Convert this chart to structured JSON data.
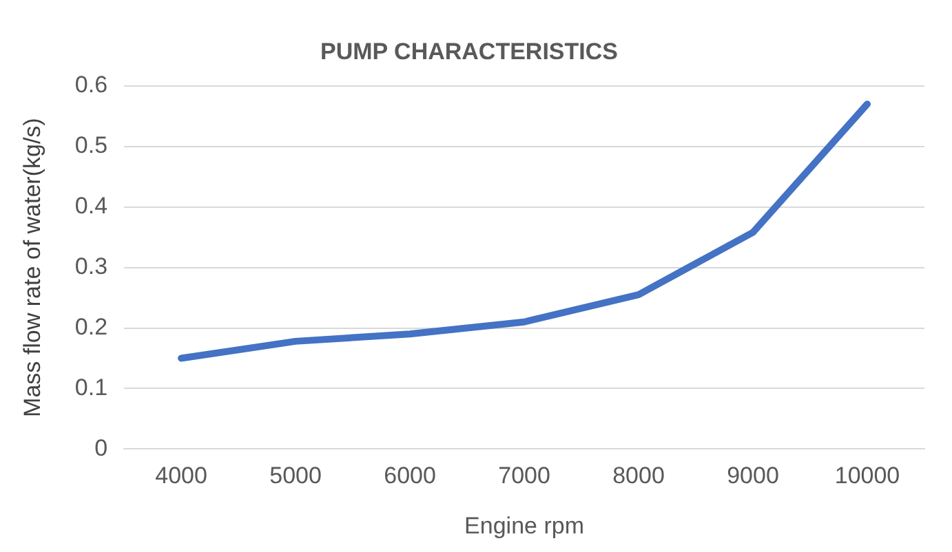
{
  "chart_data": {
    "type": "line",
    "title": "PUMP CHARACTERISTICS",
    "xlabel": "Engine rpm",
    "ylabel": "Mass flow rate of water(kg/s)",
    "categories": [
      "4000",
      "5000",
      "6000",
      "7000",
      "8000",
      "9000",
      "10000"
    ],
    "series": [
      {
        "color": "#4472c4",
        "values": [
          0.15,
          0.178,
          0.19,
          0.21,
          0.255,
          0.358,
          0.57
        ]
      }
    ],
    "ylim": [
      0,
      0.6
    ],
    "yticks": [
      0,
      0.1,
      0.2,
      0.3,
      0.4,
      0.5,
      0.6
    ],
    "grid": "y",
    "legend": false,
    "marker": "none",
    "line_style": "solid"
  }
}
